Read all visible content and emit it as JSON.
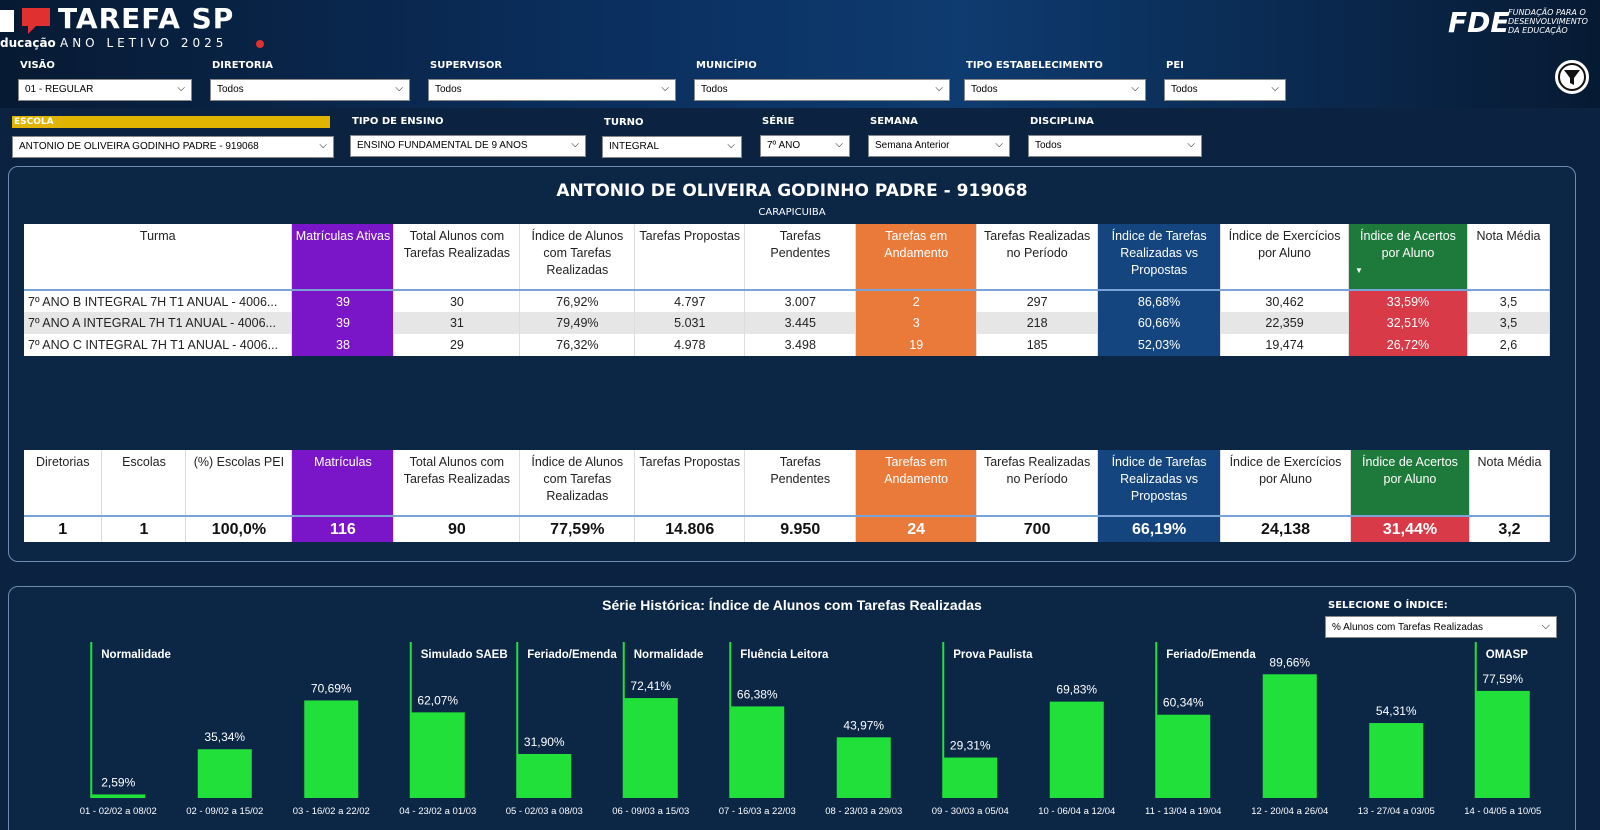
{
  "header": {
    "app_title": "TAREFA SP",
    "sub_left": "ducação",
    "sub_right": "ANO LETIVO 2025",
    "brand_right": "FDE",
    "brand_right_sub": "FUNDAÇÃO PARA O DESENVOLVIMENTO DA EDUCAÇÃO"
  },
  "filters_row1": [
    {
      "label": "VISÃO",
      "value": "01 - REGULAR"
    },
    {
      "label": "DIRETORIA",
      "value": "Todos"
    },
    {
      "label": "SUPERVISOR",
      "value": "Todos"
    },
    {
      "label": "MUNICÍPIO",
      "value": "Todos"
    },
    {
      "label": "TIPO ESTABELECIMENTO",
      "value": "Todos"
    },
    {
      "label": "PEI",
      "value": "Todos"
    }
  ],
  "filters_row2": [
    {
      "label": "ESCOLA",
      "value": "ANTONIO DE OLIVEIRA GODINHO PADRE - 919068"
    },
    {
      "label": "TIPO DE ENSINO",
      "value": "ENSINO FUNDAMENTAL DE 9 ANOS"
    },
    {
      "label": "TURNO",
      "value": "INTEGRAL"
    },
    {
      "label": "SÉRIE",
      "value": "7º ANO"
    },
    {
      "label": "SEMANA",
      "value": "Semana Anterior"
    },
    {
      "label": "DISCIPLINA",
      "value": "Todos"
    }
  ],
  "school": {
    "title": "ANTONIO DE OLIVEIRA GODINHO PADRE - 919068",
    "city": "CARAPICUIBA"
  },
  "table1": {
    "headers": [
      "Turma",
      "Matrículas Ativas",
      "Total Alunos com Tarefas Realizadas",
      "Índice de Alunos com Tarefas Realizadas",
      "Tarefas Propostas",
      "Tarefas Pendentes",
      "Tarefas em Andamento",
      "Tarefas Realizadas no Período",
      "Índice de Tarefas Realizadas vs Propostas",
      "Índice de Exercícios por Aluno",
      "Índice de Acertos por Aluno",
      "Nota Média"
    ],
    "rows": [
      [
        "7º ANO B INTEGRAL 7H T1 ANUAL - 4006...",
        "39",
        "30",
        "76,92%",
        "4.797",
        "3.007",
        "2",
        "297",
        "86,68%",
        "30,462",
        "33,59%",
        "3,5"
      ],
      [
        "7º ANO A INTEGRAL 7H T1 ANUAL - 4006...",
        "39",
        "31",
        "79,49%",
        "5.031",
        "3.445",
        "3",
        "218",
        "60,66%",
        "22,359",
        "32,51%",
        "3,5"
      ],
      [
        "7º ANO C INTEGRAL 7H T1 ANUAL - 4006...",
        "38",
        "29",
        "76,32%",
        "4.978",
        "3.498",
        "19",
        "185",
        "52,03%",
        "19,474",
        "26,72%",
        "2,6"
      ]
    ]
  },
  "table2": {
    "headers": [
      "Diretorias",
      "Escolas",
      "(%) Escolas PEI",
      "Matrículas",
      "Total Alunos com Tarefas Realizadas",
      "Índice de Alunos com Tarefas Realizadas",
      "Tarefas Propostas",
      "Tarefas Pendentes",
      "Tarefas em Andamento",
      "Tarefas Realizadas no Período",
      "Índice de Tarefas Realizadas vs Propostas",
      "Índice de Exercícios por Aluno",
      "Índice de Acertos por Aluno",
      "Nota Média"
    ],
    "values": [
      "1",
      "1",
      "100,0%",
      "116",
      "90",
      "77,59%",
      "14.806",
      "9.950",
      "24",
      "700",
      "66,19%",
      "24,138",
      "31,44%",
      "3,2"
    ]
  },
  "index_selector": {
    "label": "SELECIONE O ÍNDICE:",
    "value": "% Alunos com Tarefas Realizadas"
  },
  "colors": {
    "purple": "#7a16c8",
    "orange": "#ea7a3a",
    "blue": "#14457e",
    "green": "#1d7a3a",
    "red": "#d83a48",
    "bar": "#22e03a"
  },
  "chart_data": {
    "type": "bar",
    "title": "Série Histórica: Índice de Alunos com Tarefas Realizadas",
    "categories": [
      "01 - 02/02 a 08/02",
      "02 - 09/02 a 15/02",
      "03 - 16/02 a 22/02",
      "04 - 23/02 a 01/03",
      "05 - 02/03 a 08/03",
      "06 - 09/03 a 15/03",
      "07 - 16/03 a 22/03",
      "08 - 23/03 a 29/03",
      "09 - 30/03 a 05/04",
      "10 - 06/04 a 12/04",
      "11 - 13/04 a 19/04",
      "12 - 20/04 a 26/04",
      "13 - 27/04 a 03/05",
      "14 - 04/05 a 10/05"
    ],
    "values": [
      2.59,
      35.34,
      70.69,
      62.07,
      31.9,
      72.41,
      66.38,
      43.97,
      29.31,
      69.83,
      60.34,
      89.66,
      54.31,
      77.59
    ],
    "value_labels": [
      "2,59%",
      "35,34%",
      "70,69%",
      "62,07%",
      "31,90%",
      "72,41%",
      "66,38%",
      "43,97%",
      "29,31%",
      "69,83%",
      "60,34%",
      "89,66%",
      "54,31%",
      "77,59%"
    ],
    "ylim": [
      0,
      100
    ],
    "annotations": [
      {
        "at": 0,
        "text": "Normalidade"
      },
      {
        "at": 3,
        "text": "Simulado SAEB"
      },
      {
        "at": 4,
        "text": "Feriado/Emenda"
      },
      {
        "at": 5,
        "text": "Normalidade"
      },
      {
        "at": 6,
        "text": "Fluência Leitora"
      },
      {
        "at": 8,
        "text": "Prova Paulista"
      },
      {
        "at": 10,
        "text": "Feriado/Emenda"
      },
      {
        "at": 13,
        "text": "OMASP"
      }
    ]
  }
}
